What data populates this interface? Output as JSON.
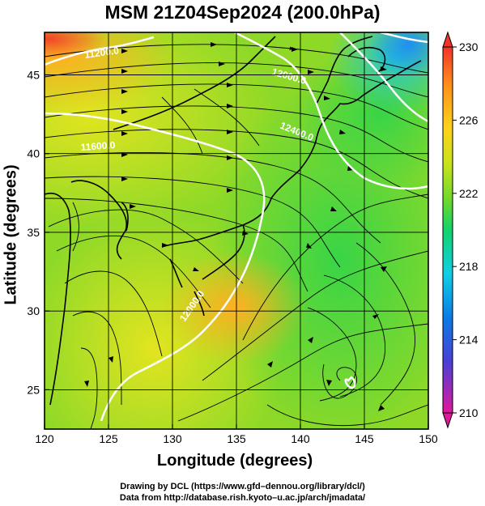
{
  "title": "MSM 21Z04Sep2024 (200.0hPa)",
  "chart_data": {
    "type": "heatmap",
    "title": "MSM 21Z04Sep2024 (200.0hPa)",
    "xlabel": "Longitude (degrees)",
    "ylabel": "Latitude  (degrees)",
    "xlim": [
      120,
      150
    ],
    "ylim": [
      22.5,
      47.7
    ],
    "x_ticks": [
      120,
      125,
      130,
      135,
      140,
      145,
      150
    ],
    "y_ticks": [
      25,
      30,
      35,
      40,
      45
    ],
    "x_tick_labels": [
      "120",
      "125",
      "130",
      "135",
      "140",
      "145",
      "150"
    ],
    "y_tick_labels": [
      "25",
      "30",
      "35",
      "40",
      "45"
    ],
    "colorbar": {
      "range": [
        210,
        230
      ],
      "ticks": [
        230,
        226,
        222,
        218,
        214,
        210
      ],
      "tick_labels": [
        "230",
        "226",
        "222",
        "218",
        "214",
        "210"
      ],
      "colors": [
        "#e0189c",
        "#4b3fd6",
        "#0a7be6",
        "#10cfe6",
        "#12d36a",
        "#6cd82c",
        "#c7e31c",
        "#ffd21a",
        "#ff8c1a",
        "#f0342a"
      ]
    },
    "contours": [
      {
        "label": "11200.0",
        "value": 11200.0
      },
      {
        "label": "11600.0",
        "value": 11600.0
      },
      {
        "label": "12000.0",
        "value": 12000.0
      },
      {
        "label": "12400.0",
        "value": 12400.0
      },
      {
        "label": "12000.0",
        "value": 12000.0
      }
    ],
    "grid": true
  },
  "credits": {
    "line1": "Drawing by DCL (https://www.gfd–dennou.org/library/dcl/)",
    "line2": "Data from http://database.rish.kyoto–u.ac.jp/arch/jmadata/"
  }
}
